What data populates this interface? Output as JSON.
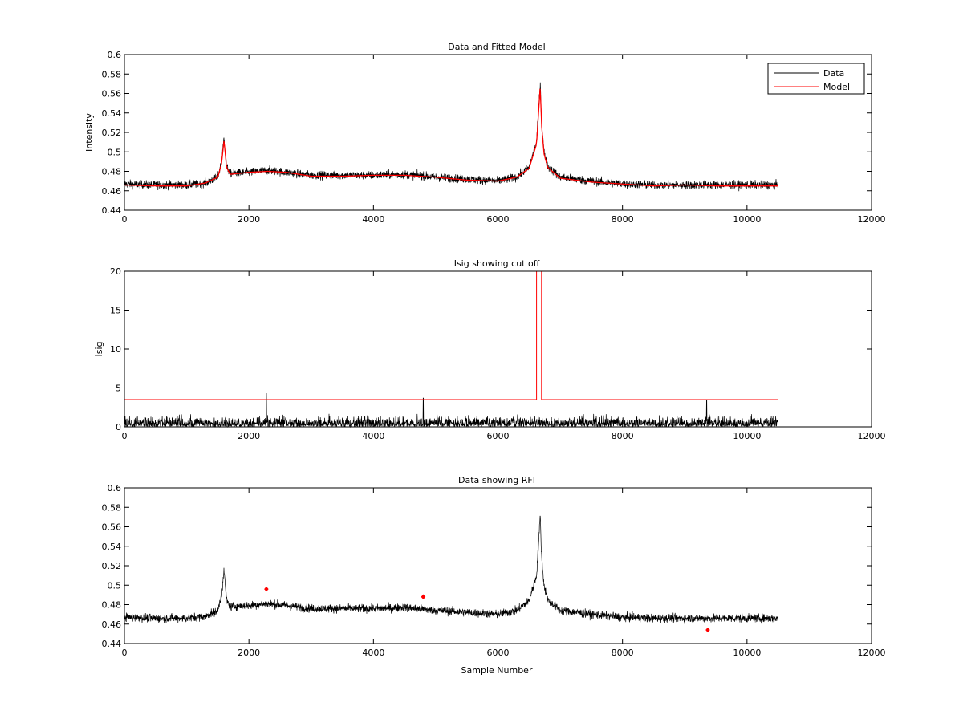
{
  "figure": {
    "background": "#ffffff"
  },
  "chart_data": [
    {
      "type": "line",
      "title": "Data and Fitted Model",
      "xlabel": "",
      "ylabel": "Intensity",
      "xlim": [
        0,
        12000
      ],
      "ylim": [
        0.44,
        0.6
      ],
      "xticks": [
        0,
        2000,
        4000,
        6000,
        8000,
        10000,
        12000
      ],
      "xtick_labels": [
        "0",
        "2000",
        "4000",
        "6000",
        "8000",
        "10000",
        "12000"
      ],
      "yticks": [
        0.44,
        0.46,
        0.48,
        0.5,
        0.52,
        0.54,
        0.56,
        0.58,
        0.6
      ],
      "ytick_labels": [
        "0.44",
        "0.46",
        "0.48",
        "0.5",
        "0.52",
        "0.54",
        "0.56",
        "0.58",
        "0.6"
      ],
      "grid": false,
      "legend": {
        "position": "top-right",
        "entries": [
          "Data",
          "Model"
        ]
      },
      "series": [
        {
          "name": "Data",
          "color": "#000000",
          "kind": "noisy",
          "x": [
            0,
            500,
            1000,
            1300,
            1500,
            1560,
            1600,
            1640,
            1700,
            2000,
            2300,
            2600,
            3000,
            3500,
            4000,
            4500,
            5000,
            5500,
            6000,
            6300,
            6500,
            6620,
            6680,
            6700,
            6740,
            6800,
            7000,
            7500,
            8000,
            8500,
            9000,
            9500,
            10000,
            10500
          ],
          "y": [
            0.467,
            0.466,
            0.466,
            0.468,
            0.474,
            0.49,
            0.515,
            0.485,
            0.478,
            0.479,
            0.481,
            0.479,
            0.476,
            0.476,
            0.476,
            0.477,
            0.474,
            0.472,
            0.47,
            0.474,
            0.484,
            0.51,
            0.572,
            0.53,
            0.5,
            0.485,
            0.474,
            0.47,
            0.467,
            0.466,
            0.466,
            0.466,
            0.466,
            0.466
          ],
          "noise_amplitude": 0.008
        },
        {
          "name": "Model",
          "color": "#ff0000",
          "kind": "smooth",
          "x": [
            0,
            500,
            1000,
            1300,
            1500,
            1560,
            1600,
            1640,
            1700,
            2000,
            2300,
            2600,
            3000,
            3500,
            4000,
            4500,
            5000,
            5500,
            6000,
            6300,
            6500,
            6620,
            6680,
            6700,
            6740,
            6800,
            7000,
            7500,
            8000,
            8500,
            9000,
            9500,
            10000,
            10500
          ],
          "y": [
            0.466,
            0.465,
            0.465,
            0.468,
            0.474,
            0.488,
            0.512,
            0.484,
            0.477,
            0.479,
            0.48,
            0.479,
            0.475,
            0.475,
            0.476,
            0.476,
            0.474,
            0.471,
            0.47,
            0.474,
            0.483,
            0.508,
            0.568,
            0.528,
            0.498,
            0.484,
            0.473,
            0.469,
            0.467,
            0.465,
            0.466,
            0.465,
            0.465,
            0.465
          ]
        }
      ]
    },
    {
      "type": "line",
      "title": "Isig showing cut off",
      "xlabel": "",
      "ylabel": "Isig",
      "xlim": [
        0,
        12000
      ],
      "ylim": [
        0,
        20
      ],
      "xticks": [
        0,
        2000,
        4000,
        6000,
        8000,
        10000,
        12000
      ],
      "xtick_labels": [
        "0",
        "2000",
        "4000",
        "6000",
        "8000",
        "10000",
        "12000"
      ],
      "yticks": [
        0,
        5,
        10,
        15,
        20
      ],
      "ytick_labels": [
        "0",
        "5",
        "10",
        "15",
        "20"
      ],
      "grid": false,
      "series": [
        {
          "color": "#000000",
          "kind": "abs-noise",
          "x_range": [
            0,
            10500
          ],
          "noise_amplitude": 2.8,
          "spikes": [
            {
              "x": 2280,
              "y": 4.3
            },
            {
              "x": 4800,
              "y": 3.7
            },
            {
              "x": 9350,
              "y": 3.5
            }
          ]
        },
        {
          "color": "#ff0000",
          "kind": "cutoff",
          "x": [
            0,
            6620,
            6620,
            6700,
            6700,
            10500
          ],
          "y": [
            3.5,
            3.5,
            20,
            20,
            3.5,
            3.5
          ]
        }
      ]
    },
    {
      "type": "line",
      "title": "Data showing RFI",
      "xlabel": "Sample Number",
      "ylabel": "",
      "xlim": [
        0,
        12000
      ],
      "ylim": [
        0.44,
        0.6
      ],
      "xticks": [
        0,
        2000,
        4000,
        6000,
        8000,
        10000,
        12000
      ],
      "xtick_labels": [
        "0",
        "2000",
        "4000",
        "6000",
        "8000",
        "10000",
        "12000"
      ],
      "yticks": [
        0.44,
        0.46,
        0.48,
        0.5,
        0.52,
        0.54,
        0.56,
        0.58,
        0.6
      ],
      "ytick_labels": [
        "0.44",
        "0.46",
        "0.48",
        "0.5",
        "0.52",
        "0.54",
        "0.56",
        "0.58",
        "0.6"
      ],
      "grid": false,
      "series": [
        {
          "color": "#000000",
          "kind": "noisy",
          "x": [
            0,
            500,
            1000,
            1300,
            1500,
            1560,
            1600,
            1640,
            1700,
            2000,
            2300,
            2600,
            3000,
            3500,
            4000,
            4500,
            5000,
            5500,
            6000,
            6300,
            6500,
            6620,
            6680,
            6700,
            6740,
            6800,
            7000,
            7500,
            8000,
            8500,
            9000,
            9500,
            10000,
            10500
          ],
          "y": [
            0.467,
            0.466,
            0.466,
            0.468,
            0.474,
            0.49,
            0.515,
            0.485,
            0.478,
            0.479,
            0.481,
            0.479,
            0.476,
            0.476,
            0.476,
            0.477,
            0.474,
            0.472,
            0.47,
            0.474,
            0.484,
            0.51,
            0.572,
            0.53,
            0.5,
            0.485,
            0.474,
            0.47,
            0.467,
            0.466,
            0.466,
            0.466,
            0.466,
            0.466
          ],
          "noise_amplitude": 0.008
        },
        {
          "color": "#ff0000",
          "kind": "markers",
          "points": [
            {
              "x": 2280,
              "y": 0.496
            },
            {
              "x": 4800,
              "y": 0.488
            },
            {
              "x": 9370,
              "y": 0.454
            }
          ]
        }
      ]
    }
  ]
}
